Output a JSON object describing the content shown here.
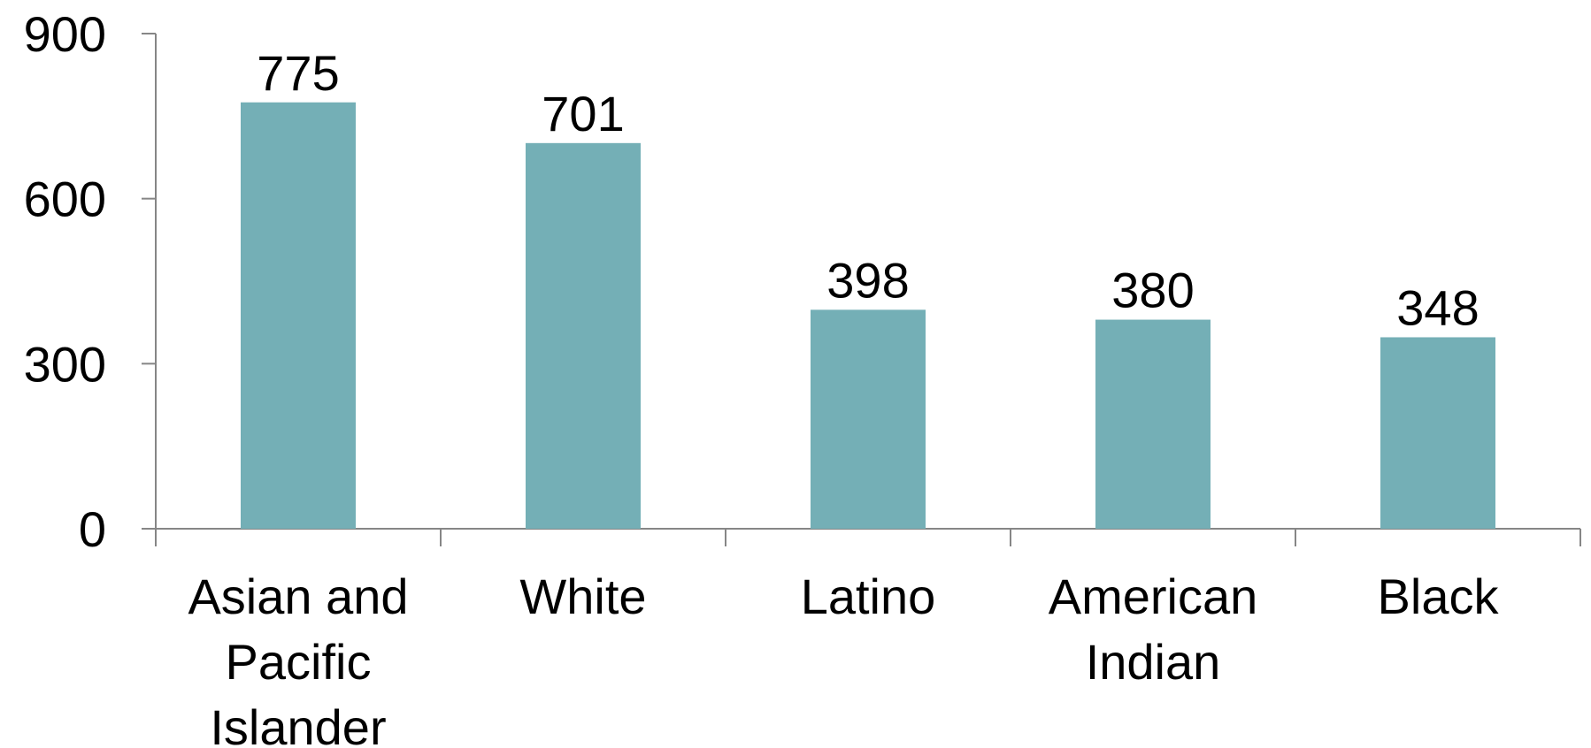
{
  "chart_data": {
    "type": "bar",
    "categories": [
      [
        "Asian and",
        "Pacific",
        "Islander"
      ],
      [
        "White"
      ],
      [
        "Latino"
      ],
      [
        "American",
        "Indian"
      ],
      [
        "Black"
      ]
    ],
    "values": [
      775,
      701,
      398,
      380,
      348
    ],
    "data_labels": [
      "775",
      "701",
      "398",
      "380",
      "348"
    ],
    "ylim": [
      0,
      900
    ],
    "yticks": [
      0,
      300,
      600,
      900
    ],
    "ytick_labels": [
      "0",
      "300",
      "600",
      "900"
    ],
    "title": "",
    "xlabel": "",
    "ylabel": "",
    "grid": false,
    "legend": false,
    "bar_color": "#74afb6",
    "axis_color": "#868686"
  }
}
